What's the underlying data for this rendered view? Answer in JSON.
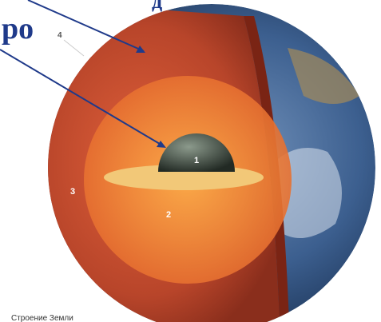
{
  "header": {
    "partial_top": "д",
    "core_word": "ро"
  },
  "layers": {
    "inner_core": "1",
    "outer_core": "2",
    "mantle": "3",
    "crust": "4"
  },
  "caption": "Строение Земли"
}
